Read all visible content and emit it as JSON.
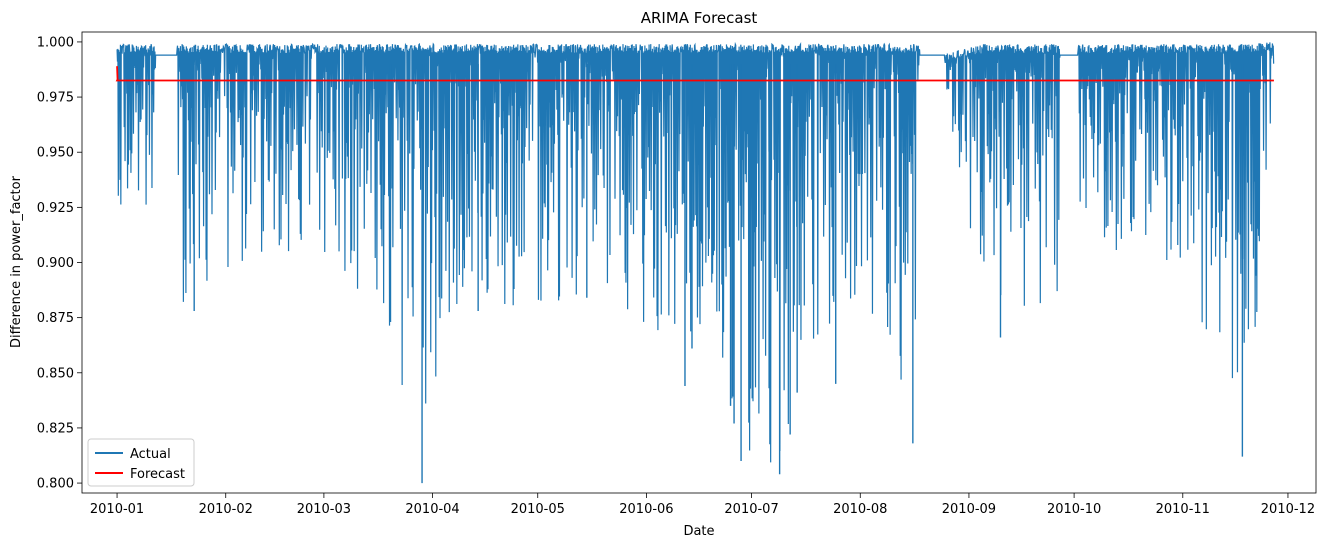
{
  "chart_data": {
    "type": "line",
    "title": "ARIMA Forecast",
    "xlabel": "Date",
    "ylabel": "Difference in power_factor",
    "x_ticks": [
      "2010-01",
      "2010-02",
      "2010-03",
      "2010-04",
      "2010-05",
      "2010-06",
      "2010-07",
      "2010-08",
      "2010-09",
      "2010-10",
      "2010-11",
      "2010-12"
    ],
    "y_ticks": [
      "0.800",
      "0.825",
      "0.850",
      "0.875",
      "0.900",
      "0.925",
      "0.950",
      "0.975",
      "1.000"
    ],
    "xlim": [
      "2009-12-22",
      "2010-12-09"
    ],
    "ylim": [
      0.7955,
      1.0045
    ],
    "grid": false,
    "legend_position": "lower-left",
    "series": [
      {
        "name": "Actual",
        "color": "#1f77b4",
        "envelope": {
          "x": [
            "2010-01-01",
            "2010-01-05",
            "2010-01-12",
            "2010-01-20",
            "2010-02-01",
            "2010-02-15",
            "2010-03-01",
            "2010-03-15",
            "2010-03-29",
            "2010-04-10",
            "2010-04-25",
            "2010-05-10",
            "2010-05-25",
            "2010-06-10",
            "2010-06-20",
            "2010-06-26",
            "2010-07-01",
            "2010-07-09",
            "2010-07-15",
            "2010-07-25",
            "2010-08-05",
            "2010-08-17",
            "2010-08-23",
            "2010-09-05",
            "2010-09-15",
            "2010-09-27",
            "2010-10-01",
            "2010-10-15",
            "2010-11-01",
            "2010-11-18",
            "2010-11-27"
          ],
          "upper": [
            0.999,
            0.999,
            0.999,
            0.999,
            0.999,
            0.999,
            0.999,
            0.999,
            0.999,
            0.999,
            0.999,
            0.999,
            0.999,
            0.999,
            0.999,
            0.999,
            0.999,
            0.999,
            0.999,
            0.999,
            0.999,
            0.999,
            0.994,
            0.999,
            0.999,
            0.999,
            0.999,
            0.999,
            0.999,
            0.999,
            1.0
          ],
          "lower": [
            0.93,
            0.915,
            0.893,
            0.88,
            0.895,
            0.905,
            0.902,
            0.88,
            0.8,
            0.878,
            0.88,
            0.882,
            0.88,
            0.862,
            0.845,
            0.83,
            0.81,
            0.804,
            0.84,
            0.85,
            0.875,
            0.818,
            0.994,
            0.87,
            0.856,
            0.885,
            0.93,
            0.9,
            0.9,
            0.812,
            0.946
          ]
        },
        "spikes": [
          {
            "x": "2010-03-29",
            "y": 0.8
          },
          {
            "x": "2010-07-09",
            "y": 0.804
          },
          {
            "x": "2010-06-28",
            "y": 0.81
          },
          {
            "x": "2010-11-18",
            "y": 0.812
          },
          {
            "x": "2010-08-16",
            "y": 0.818
          },
          {
            "x": "2010-07-12",
            "y": 0.822
          },
          {
            "x": "2010-06-26",
            "y": 0.827
          },
          {
            "x": "2010-06-25",
            "y": 0.835
          },
          {
            "x": "2010-07-06",
            "y": 0.843
          },
          {
            "x": "2010-06-12",
            "y": 0.844
          },
          {
            "x": "2010-07-14",
            "y": 0.841
          },
          {
            "x": "2010-07-25",
            "y": 0.845
          },
          {
            "x": "2010-09-10",
            "y": 0.866
          },
          {
            "x": "2010-03-20",
            "y": 0.873
          },
          {
            "x": "2010-01-23",
            "y": 0.878
          },
          {
            "x": "2010-04-14",
            "y": 0.878
          },
          {
            "x": "2010-05-15",
            "y": 0.884
          },
          {
            "x": "2010-06-14",
            "y": 0.861
          }
        ],
        "flat_segments": [
          {
            "from": "2010-01-12",
            "to": "2010-01-18",
            "y": 0.994
          },
          {
            "from": "2010-08-18",
            "to": "2010-08-25",
            "y": 0.994
          },
          {
            "from": "2010-09-27",
            "to": "2010-10-02",
            "y": 0.994
          }
        ]
      },
      {
        "name": "Forecast",
        "color": "#ff0000",
        "x": [
          "2010-01-01",
          "2010-01-01",
          "2010-01-01",
          "2010-11-27"
        ],
        "values": [
          0.989,
          0.983,
          0.9825,
          0.9825
        ]
      }
    ]
  }
}
